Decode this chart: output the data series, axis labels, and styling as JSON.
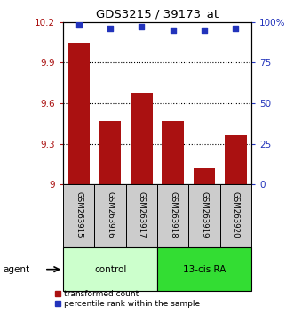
{
  "title": "GDS3215 / 39173_at",
  "samples": [
    "GSM263915",
    "GSM263916",
    "GSM263917",
    "GSM263918",
    "GSM263919",
    "GSM263920"
  ],
  "bar_values": [
    10.05,
    9.47,
    9.68,
    9.47,
    9.12,
    9.36
  ],
  "percentile_values": [
    98,
    96,
    97,
    95,
    95,
    96
  ],
  "ylim_left": [
    9.0,
    10.2
  ],
  "ylim_right": [
    0,
    100
  ],
  "yticks_left": [
    9.0,
    9.3,
    9.6,
    9.9,
    10.2
  ],
  "yticks_right": [
    0,
    25,
    50,
    75,
    100
  ],
  "ytick_labels_left": [
    "9",
    "9.3",
    "9.6",
    "9.9",
    "10.2"
  ],
  "ytick_labels_right": [
    "0",
    "25",
    "50",
    "75",
    "100%"
  ],
  "bar_color": "#aa1111",
  "dot_color": "#2233bb",
  "groups": [
    {
      "label": "control",
      "indices": [
        0,
        1,
        2
      ],
      "color": "#ccffcc"
    },
    {
      "label": "13-cis RA",
      "indices": [
        3,
        4,
        5
      ],
      "color": "#33dd33"
    }
  ],
  "agent_label": "agent",
  "legend_bar_label": "transformed count",
  "legend_dot_label": "percentile rank within the sample",
  "bar_width": 0.7,
  "x_tick_area_color": "#cccccc"
}
